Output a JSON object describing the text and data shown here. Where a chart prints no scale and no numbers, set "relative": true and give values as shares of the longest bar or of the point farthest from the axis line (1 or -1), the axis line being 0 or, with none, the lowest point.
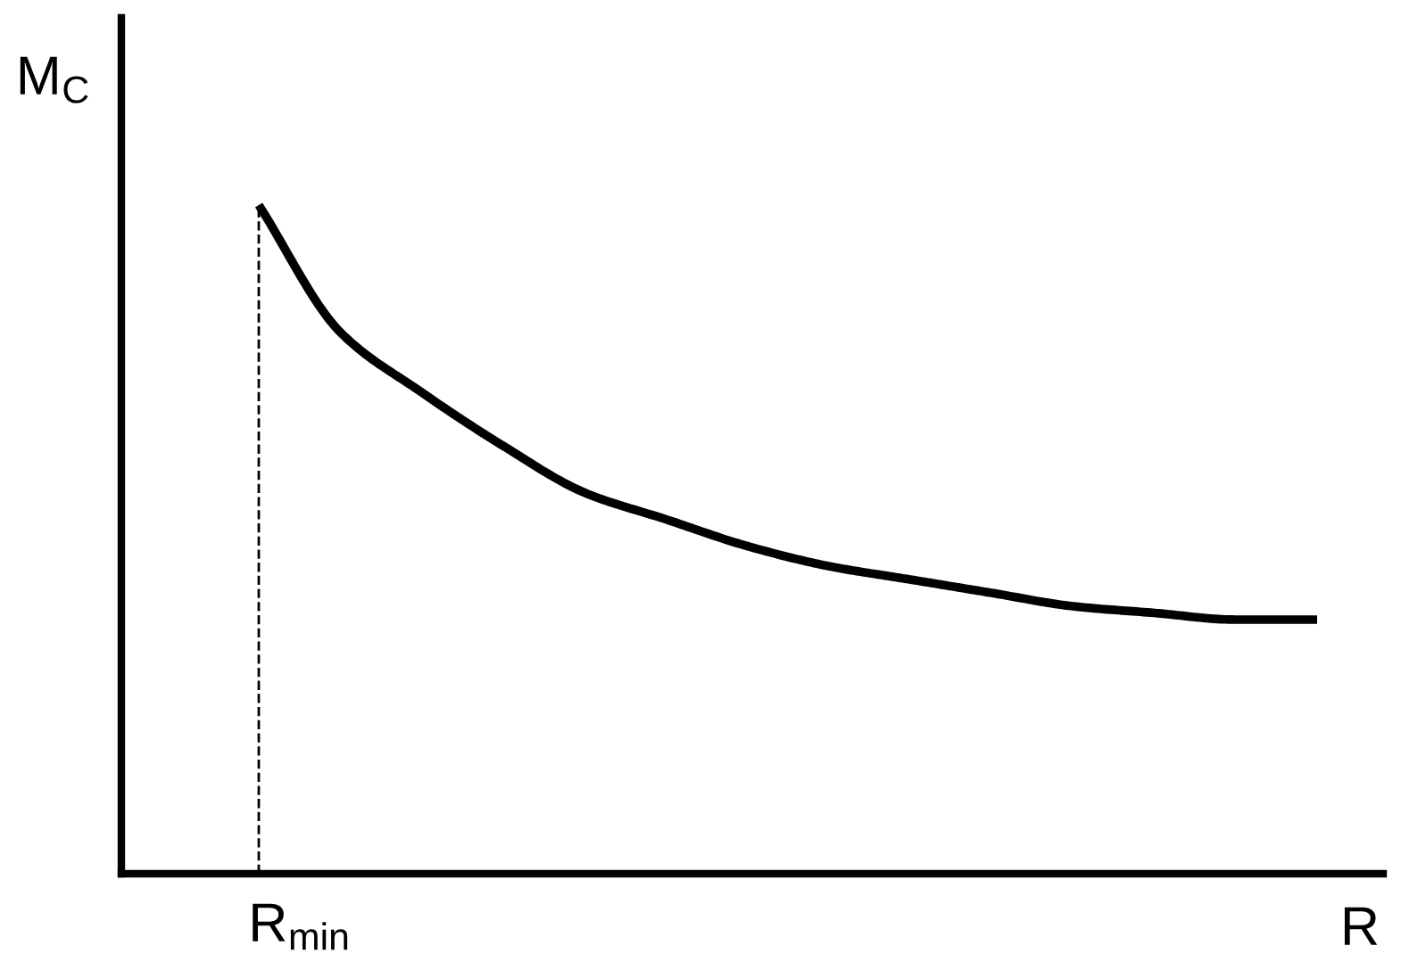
{
  "chart_data": {
    "type": "line",
    "relative": true,
    "xlabel": "R",
    "ylabel": "M$_{C}$",
    "categories": [
      null,
      null,
      null,
      null,
      null,
      null,
      null,
      null,
      null,
      null,
      null,
      null,
      null,
      null
    ],
    "series": [
      {
        "color": "#000000",
        "values": [
          1.0,
          0.81,
          0.72,
          0.64,
          0.57,
          0.53,
          0.49,
          0.46,
          0.44,
          0.42,
          0.4,
          0.39,
          0.38,
          0.38
        ]
      }
    ],
    "ref_lines": [
      {
        "axis": "x",
        "color": "#000000",
        "line_style": "dashed"
      }
    ],
    "annotations": [
      "R$_{min}$"
    ],
    "legend": false,
    "marker": "none",
    "line_style": "solid"
  }
}
